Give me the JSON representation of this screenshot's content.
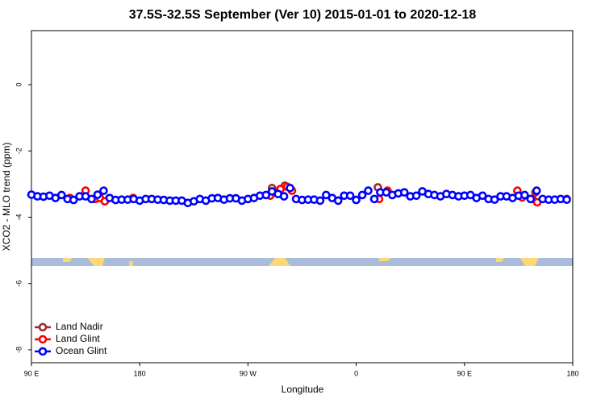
{
  "chart_data": {
    "type": "scatter",
    "title": "37.5S-32.5S September (Ver 10)   2015-01-01 to 2020-12-18",
    "x_label": "Longitude",
    "y_label": "XCO2 - MLO trend (ppm)",
    "xlim": [
      90,
      540
    ],
    "ylim": [
      -8.39,
      1.63
    ],
    "xticks": [
      {
        "value": 90,
        "label": "90 E"
      },
      {
        "value": 180,
        "label": "180"
      },
      {
        "value": 270,
        "label": "90 W"
      },
      {
        "value": 360,
        "label": "0"
      },
      {
        "value": 450,
        "label": "90 E"
      },
      {
        "value": 540,
        "label": "180"
      }
    ],
    "yticks": [
      0,
      -2,
      -4,
      -6,
      -8
    ],
    "legend": "bottom-left",
    "series": [
      {
        "name": "Land Nadir",
        "color": "#a52a2a",
        "x": [
          290,
          300.7,
          378,
          509
        ],
        "values": [
          -3.12,
          -3.05,
          -3.1,
          -3.25
        ]
      },
      {
        "name": "Land Glint",
        "color": "#ff0000",
        "x": [
          122,
          135,
          143,
          147,
          151,
          174.5,
          288.5,
          292.5,
          297,
          302.6,
          306.6,
          379,
          386,
          494,
          498,
          506.5,
          510.5,
          535
        ],
        "values": [
          -3.42,
          -3.2,
          -3.45,
          -3.42,
          -3.52,
          -3.42,
          -3.35,
          -3.25,
          -3.15,
          -3.08,
          -3.2,
          -3.45,
          -3.2,
          -3.2,
          -3.4,
          -3.45,
          -3.55,
          -3.45
        ]
      },
      {
        "name": "Ocean Glint",
        "color": "#0000ff",
        "x": [
          90,
          95,
          100,
          105,
          110,
          115,
          120,
          125,
          130,
          135,
          140,
          145,
          150,
          155,
          160,
          165,
          170,
          175,
          180,
          185,
          190,
          195,
          200,
          205,
          210,
          215,
          220,
          225,
          230,
          235,
          240,
          245,
          250,
          255,
          260,
          265,
          270,
          275,
          280,
          285,
          290,
          295,
          300,
          305,
          310,
          315,
          320,
          325,
          330,
          335,
          340,
          345,
          350,
          355,
          360,
          365,
          370,
          375,
          380,
          385,
          390,
          395,
          400,
          405,
          410,
          415,
          420,
          425,
          430,
          435,
          440,
          445,
          450,
          455,
          460,
          465,
          470,
          475,
          480,
          485,
          490,
          495,
          500,
          505,
          510,
          515,
          520,
          525,
          530,
          535
        ],
        "values": [
          -3.32,
          -3.37,
          -3.38,
          -3.35,
          -3.42,
          -3.33,
          -3.45,
          -3.48,
          -3.37,
          -3.37,
          -3.45,
          -3.32,
          -3.2,
          -3.42,
          -3.48,
          -3.47,
          -3.47,
          -3.45,
          -3.5,
          -3.45,
          -3.45,
          -3.47,
          -3.48,
          -3.5,
          -3.5,
          -3.5,
          -3.57,
          -3.52,
          -3.45,
          -3.5,
          -3.43,
          -3.42,
          -3.47,
          -3.43,
          -3.43,
          -3.5,
          -3.45,
          -3.42,
          -3.35,
          -3.33,
          -3.22,
          -3.3,
          -3.37,
          -3.12,
          -3.45,
          -3.48,
          -3.47,
          -3.47,
          -3.5,
          -3.33,
          -3.42,
          -3.5,
          -3.35,
          -3.35,
          -3.48,
          -3.33,
          -3.2,
          -3.45,
          -3.25,
          -3.25,
          -3.33,
          -3.28,
          -3.25,
          -3.37,
          -3.35,
          -3.22,
          -3.3,
          -3.33,
          -3.37,
          -3.3,
          -3.33,
          -3.37,
          -3.35,
          -3.33,
          -3.42,
          -3.35,
          -3.45,
          -3.47,
          -3.37,
          -3.37,
          -3.42,
          -3.35,
          -3.33,
          -3.45,
          -3.2,
          -3.45,
          -3.47,
          -3.47,
          -3.45,
          -3.47
        ]
      }
    ]
  }
}
